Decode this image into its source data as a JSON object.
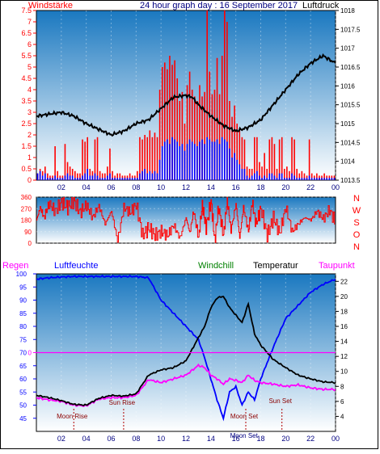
{
  "header": {
    "left_label": "Windstärke",
    "title": "24 hour graph day : 16 September 2017",
    "right_label": "Luftdruck"
  },
  "colors": {
    "wind_bars": "#ff0000",
    "wind_avg": "#0000ff",
    "pressure": "#000000",
    "direction": "#ff0000",
    "humidity": "#0000ff",
    "temperature": "#000000",
    "dewpoint": "#ff00ff",
    "rain": "#ff00ff",
    "sky_top": "#1a78c0",
    "sky_bottom": "#ffffff"
  },
  "chart_data": [
    {
      "id": "wind_pressure",
      "type": "line",
      "title": "24 hour graph day : 16 September 2017",
      "x_ticks": [
        "02",
        "04",
        "06",
        "08",
        "10",
        "12",
        "14",
        "16",
        "18",
        "20",
        "22",
        "00"
      ],
      "left_axis": {
        "label": "Windstärke",
        "ticks": [
          "0",
          "0.5",
          "1",
          "1.5",
          "2",
          "2.5",
          "3",
          "3.5",
          "4",
          "4.5",
          "5",
          "5.5",
          "6",
          "6.5",
          "7",
          "7.5"
        ],
        "range": [
          0,
          7.5
        ]
      },
      "right_axis": {
        "label": "Luftdruck",
        "ticks": [
          "1013.5",
          "1014",
          "1014.5",
          "1015",
          "1015.5",
          "1016",
          "1016.5",
          "1017",
          "1017.5",
          "1018"
        ],
        "range": [
          1013.5,
          1018
        ]
      },
      "series": [
        {
          "name": "Luftdruck",
          "axis": "right",
          "points": [
            [
              0,
              1015.2
            ],
            [
              1,
              1015.25
            ],
            [
              2,
              1015.3
            ],
            [
              3,
              1015.2
            ],
            [
              4,
              1015.0
            ],
            [
              5,
              1014.85
            ],
            [
              6,
              1014.7
            ],
            [
              7,
              1014.8
            ],
            [
              8,
              1015.0
            ],
            [
              9,
              1015.1
            ],
            [
              10,
              1015.4
            ],
            [
              11,
              1015.7
            ],
            [
              12,
              1015.75
            ],
            [
              12.5,
              1015.7
            ],
            [
              13,
              1015.5
            ],
            [
              14,
              1015.2
            ],
            [
              15,
              1014.95
            ],
            [
              16,
              1014.8
            ],
            [
              17,
              1014.9
            ],
            [
              18,
              1015.1
            ],
            [
              19,
              1015.5
            ],
            [
              20,
              1015.9
            ],
            [
              21,
              1016.3
            ],
            [
              22,
              1016.6
            ],
            [
              23,
              1016.8
            ],
            [
              24,
              1016.6
            ]
          ]
        }
      ],
      "wind_gust_bins": [
        0.3,
        0.5,
        0.4,
        0.6,
        0.3,
        0.2,
        0.2,
        1.5,
        0.4,
        0.2,
        0.2,
        1.6,
        0.8,
        0.6,
        0.5,
        0.4,
        0.3,
        0.3,
        1.8,
        1.7,
        1.9,
        0.5,
        0.4,
        1.8,
        1.9,
        0.4,
        0.3,
        0.3,
        0.6,
        1.4,
        0.4,
        0.2,
        0.3,
        0.3,
        0.2,
        0.2,
        0.2,
        0.3,
        0.2,
        0.2,
        0.4,
        1.9,
        1.8,
        2.0,
        1.9,
        2.2,
        1.9,
        2.1,
        1.9,
        4.0,
        5.0,
        5.2,
        4.9,
        5.5,
        5.1,
        5.3,
        4.5,
        3.5,
        3.9,
        2.5,
        4.2,
        4.8,
        4.0,
        3.7,
        3.5,
        4.2,
        3.7,
        3.9,
        7.5,
        4.8,
        3.8,
        4.0,
        5.4,
        3.8,
        5.5,
        7.5,
        7.0,
        3.5,
        2.8,
        3.3,
        2.5,
        2.2,
        1.9,
        1.8,
        0.6,
        0.5,
        0.5,
        1.9,
        1.9,
        0.8,
        0.6,
        1.2,
        0.5,
        1.8,
        1.9,
        1.6,
        0.5,
        1.8,
        1.9,
        0.5,
        0.6,
        0.4,
        1.9,
        1.8,
        0.5,
        0.3,
        0.4,
        0.3,
        0.2,
        1.8,
        0.3,
        0.2,
        0.3,
        0.2,
        0.2,
        0.3,
        0.2,
        0.2,
        0.2,
        0.2
      ],
      "wind_avg_bins": [
        0.3,
        0.4,
        0.2,
        0.3,
        0.1,
        0.1,
        0.1,
        0.2,
        0.1,
        0.1,
        0.1,
        0.2,
        0.3,
        0.2,
        0.2,
        0.1,
        0.1,
        0.1,
        0.2,
        0.3,
        0.5,
        0.2,
        0.2,
        0.3,
        0.2,
        0.1,
        0.1,
        0.1,
        0.2,
        0.3,
        0.1,
        0.1,
        0.1,
        0.1,
        0.1,
        0.1,
        0.1,
        0.1,
        0.1,
        0.1,
        0.1,
        0.3,
        0.4,
        0.5,
        0.3,
        0.4,
        0.3,
        0.4,
        0.3,
        0.9,
        1.5,
        1.7,
        1.8,
        1.6,
        1.9,
        1.8,
        1.7,
        1.5,
        1.6,
        1.3,
        1.6,
        1.8,
        1.7,
        1.6,
        1.5,
        1.7,
        1.8,
        1.6,
        1.9,
        1.8,
        1.7,
        1.7,
        1.8,
        1.6,
        1.9,
        1.8,
        1.7,
        1.4,
        1.0,
        1.2,
        0.9,
        0.7,
        0.5,
        0.5,
        0.2,
        0.1,
        0.2,
        0.3,
        0.4,
        0.2,
        0.1,
        0.2,
        0.1,
        0.3,
        0.3,
        0.2,
        0.1,
        0.3,
        0.3,
        0.1,
        0.1,
        0.1,
        0.3,
        0.2,
        0.1,
        0.1,
        0.1,
        0.1,
        0.1,
        0.2,
        0.1,
        0.1,
        0.1,
        0.1,
        0.1,
        0.1,
        0.1,
        0.1,
        0.1,
        0.1
      ]
    },
    {
      "id": "wind_direction",
      "type": "line",
      "left_axis": {
        "ticks": [
          "0",
          "90",
          "180",
          "270",
          "360"
        ],
        "range": [
          0,
          360
        ]
      },
      "right_labels": [
        "N",
        "W",
        "S",
        "O",
        "N"
      ],
      "points": [
        [
          0,
          180
        ],
        [
          0.3,
          280
        ],
        [
          0.6,
          200
        ],
        [
          1.0,
          310
        ],
        [
          1.5,
          250
        ],
        [
          2,
          320
        ],
        [
          2.5,
          280
        ],
        [
          3,
          330
        ],
        [
          3.5,
          240
        ],
        [
          4,
          300
        ],
        [
          4.5,
          200
        ],
        [
          5,
          290
        ],
        [
          5.5,
          150
        ],
        [
          6,
          250
        ],
        [
          6.5,
          20
        ],
        [
          7,
          280
        ],
        [
          7.5,
          240
        ],
        [
          8,
          300
        ],
        [
          8.5,
          60
        ],
        [
          9,
          120
        ],
        [
          9.5,
          60
        ],
        [
          10,
          90
        ],
        [
          10.5,
          60
        ],
        [
          11,
          140
        ],
        [
          11.5,
          40
        ],
        [
          12,
          200
        ],
        [
          12.3,
          80
        ],
        [
          12.6,
          250
        ],
        [
          13,
          40
        ],
        [
          13.3,
          300
        ],
        [
          13.6,
          120
        ],
        [
          14,
          330
        ],
        [
          14.3,
          20
        ],
        [
          14.6,
          280
        ],
        [
          15,
          60
        ],
        [
          15.3,
          340
        ],
        [
          15.6,
          100
        ],
        [
          16,
          310
        ],
        [
          16.3,
          40
        ],
        [
          16.6,
          280
        ],
        [
          17,
          90
        ],
        [
          17.3,
          320
        ],
        [
          17.6,
          150
        ],
        [
          18,
          270
        ],
        [
          18.5,
          60
        ],
        [
          19,
          200
        ],
        [
          19.5,
          80
        ],
        [
          20,
          280
        ],
        [
          20.5,
          90
        ],
        [
          21,
          150
        ],
        [
          21.5,
          200
        ],
        [
          22,
          180
        ],
        [
          22.5,
          250
        ],
        [
          23,
          190
        ],
        [
          23.5,
          260
        ],
        [
          24,
          160
        ]
      ]
    },
    {
      "id": "temp_humidity",
      "type": "line",
      "header_labels": {
        "rain": "Regen",
        "humidity": "Luftfeuchte",
        "windchill": "Windchill",
        "temperature": "Temperatur",
        "dewpoint": "Taupunkt"
      },
      "left_axis": {
        "label": "Luftfeuchte",
        "ticks": [
          "45",
          "50",
          "55",
          "60",
          "65",
          "70",
          "75",
          "80",
          "85",
          "90",
          "95",
          "100"
        ],
        "range": [
          40,
          100
        ]
      },
      "right_axis": {
        "label": "Temperatur",
        "ticks": [
          "4",
          "6",
          "8",
          "10",
          "12",
          "14",
          "16",
          "18",
          "20",
          "22"
        ],
        "range": [
          2,
          23
        ]
      },
      "rain_axis": {
        "tick": "0"
      },
      "x_ticks": [
        "02",
        "04",
        "06",
        "08",
        "10",
        "12",
        "14",
        "16",
        "18",
        "20",
        "22",
        "00"
      ],
      "annotations": [
        {
          "text": "Moon Rise",
          "x": 3.0
        },
        {
          "text": "Sun Rise",
          "x": 7.0
        },
        {
          "text": "Moon Set",
          "x": 16.8
        },
        {
          "text": "Sun Set",
          "x": 19.7
        },
        {
          "text": "Moon Set",
          "x": 17.3
        }
      ],
      "series": [
        {
          "name": "Luftfeuchte",
          "axis": "left",
          "points": [
            [
              0,
              98
            ],
            [
              1,
              98.5
            ],
            [
              2,
              98.8
            ],
            [
              3,
              99
            ],
            [
              4,
              99
            ],
            [
              5,
              99
            ],
            [
              6,
              99
            ],
            [
              7,
              99
            ],
            [
              8,
              99
            ],
            [
              9,
              98.5
            ],
            [
              10,
              90
            ],
            [
              11,
              85
            ],
            [
              12,
              80
            ],
            [
              13,
              75
            ],
            [
              13.5,
              68
            ],
            [
              14,
              60
            ],
            [
              14.5,
              52
            ],
            [
              15,
              45
            ],
            [
              15.5,
              55
            ],
            [
              16,
              57
            ],
            [
              16.5,
              50
            ],
            [
              17,
              55
            ],
            [
              17.5,
              52
            ],
            [
              18,
              60
            ],
            [
              19,
              72
            ],
            [
              20,
              83
            ],
            [
              21,
              88
            ],
            [
              22,
              93
            ],
            [
              23,
              96
            ],
            [
              24,
              98
            ]
          ]
        },
        {
          "name": "Temperatur",
          "axis": "right",
          "points": [
            [
              0,
              6.8
            ],
            [
              1,
              6.5
            ],
            [
              2,
              6.1
            ],
            [
              3,
              5.6
            ],
            [
              4,
              5.5
            ],
            [
              5,
              6.4
            ],
            [
              6,
              6.8
            ],
            [
              7,
              6.7
            ],
            [
              8,
              7.0
            ],
            [
              9,
              9.5
            ],
            [
              10,
              10.2
            ],
            [
              11,
              10.5
            ],
            [
              12,
              11.4
            ],
            [
              13,
              14.5
            ],
            [
              13.5,
              16.0
            ],
            [
              14,
              18.5
            ],
            [
              14.5,
              19.8
            ],
            [
              15,
              20.0
            ],
            [
              15.5,
              18.5
            ],
            [
              16,
              17.5
            ],
            [
              16.5,
              16.5
            ],
            [
              17,
              19.0
            ],
            [
              17.5,
              15.0
            ],
            [
              18,
              13.5
            ],
            [
              19,
              11.6
            ],
            [
              20,
              10.5
            ],
            [
              21,
              9.5
            ],
            [
              22,
              9.0
            ],
            [
              23,
              8.6
            ],
            [
              24,
              8.5
            ]
          ]
        },
        {
          "name": "Taupunkt",
          "axis": "right",
          "points": [
            [
              0,
              6.5
            ],
            [
              1,
              6.2
            ],
            [
              2,
              6.0
            ],
            [
              3,
              5.5
            ],
            [
              4,
              5.4
            ],
            [
              5,
              6.3
            ],
            [
              6,
              6.5
            ],
            [
              7,
              6.5
            ],
            [
              8,
              6.8
            ],
            [
              9,
              8.9
            ],
            [
              10,
              8.5
            ],
            [
              11,
              9.0
            ],
            [
              12,
              9.5
            ],
            [
              13,
              10.8
            ],
            [
              13.5,
              10.5
            ],
            [
              14,
              9.5
            ],
            [
              14.5,
              9.0
            ],
            [
              15,
              8.3
            ],
            [
              15.5,
              9.0
            ],
            [
              16,
              8.8
            ],
            [
              16.5,
              8.5
            ],
            [
              17,
              9.5
            ],
            [
              17.5,
              8.8
            ],
            [
              18,
              8.5
            ],
            [
              19,
              8.3
            ],
            [
              20,
              8.0
            ],
            [
              21,
              8.2
            ],
            [
              22,
              7.8
            ],
            [
              23,
              7.6
            ],
            [
              24,
              7.6
            ]
          ]
        }
      ],
      "rain_level": 0
    }
  ]
}
